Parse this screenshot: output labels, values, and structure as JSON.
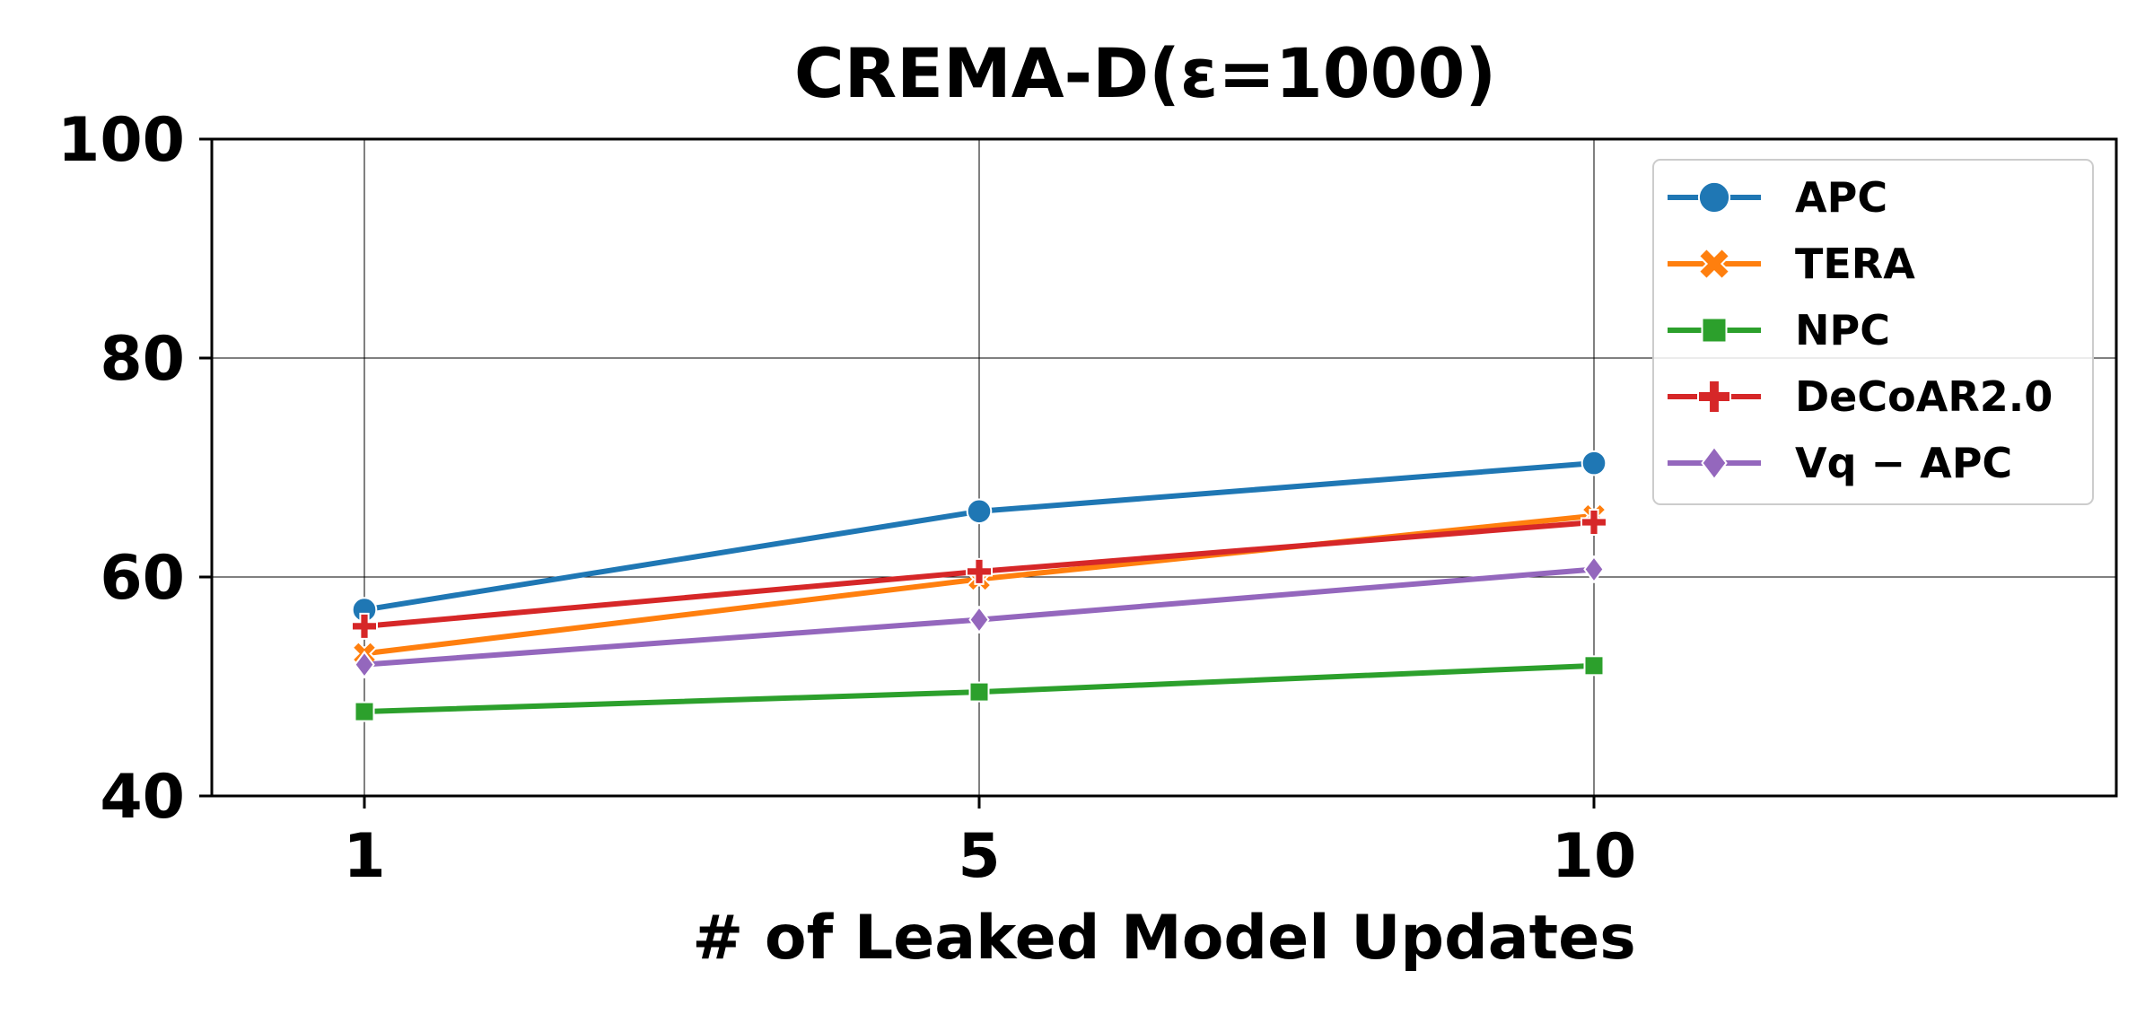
{
  "chart_data": {
    "type": "line",
    "title": "CREMA-D(ε=1000)",
    "xlabel": "# of Leaked Model Updates",
    "ylabel": "",
    "categories": [
      "1",
      "5",
      "10"
    ],
    "ylim": [
      40,
      100
    ],
    "yticks": [
      "40",
      "60",
      "80",
      "100"
    ],
    "grid": true,
    "legend_position": "top-right",
    "series": [
      {
        "name": "APC",
        "values": [
          57.0,
          66.0,
          70.4
        ],
        "color": "#1f77b4",
        "marker": "circle"
      },
      {
        "name": "TERA",
        "values": [
          53.0,
          59.8,
          65.6
        ],
        "color": "#ff7f0e",
        "marker": "x-filled"
      },
      {
        "name": "NPC",
        "values": [
          47.7,
          49.5,
          51.9
        ],
        "color": "#2ca02c",
        "marker": "square"
      },
      {
        "name": "DeCoAR2.0",
        "values": [
          55.5,
          60.5,
          65.0
        ],
        "color": "#d62728",
        "marker": "plus-filled"
      },
      {
        "name": "Vq − APC",
        "values": [
          52.0,
          56.1,
          60.7
        ],
        "color": "#9467bd",
        "marker": "diamond"
      }
    ]
  }
}
